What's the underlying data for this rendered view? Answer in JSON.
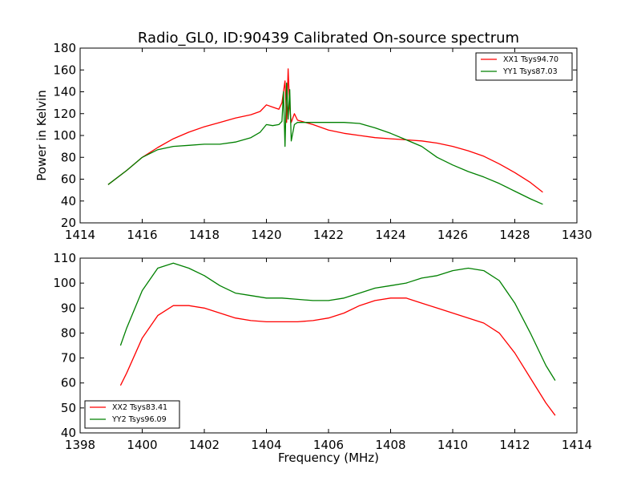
{
  "title": "Radio_GL0, ID:90439 Calibrated On-source spectrum",
  "chart_data": [
    {
      "type": "line",
      "title": "Radio_GL0, ID:90439 Calibrated On-source spectrum",
      "xlabel": "",
      "ylabel": "Power in Kelvin",
      "xlim": [
        1414,
        1430
      ],
      "ylim": [
        20,
        180
      ],
      "xticks": [
        "1414",
        "1416",
        "1418",
        "1420",
        "1422",
        "1424",
        "1426",
        "1428",
        "1430"
      ],
      "yticks": [
        "20",
        "40",
        "60",
        "80",
        "100",
        "120",
        "140",
        "160",
        "180"
      ],
      "legend": "top-right",
      "grid": false,
      "series": [
        {
          "name": "XX1 Tsys94.70",
          "color": "#ff0000",
          "x": [
            1414.9,
            1415.5,
            1416.0,
            1416.5,
            1417.0,
            1417.5,
            1418.0,
            1418.5,
            1419.0,
            1419.5,
            1419.8,
            1420.0,
            1420.2,
            1420.4,
            1420.5,
            1420.6,
            1420.65,
            1420.7,
            1420.75,
            1420.8,
            1420.9,
            1421.0,
            1421.5,
            1422.0,
            1422.5,
            1423.0,
            1423.5,
            1424.0,
            1424.5,
            1425.0,
            1425.5,
            1426.0,
            1426.5,
            1427.0,
            1427.5,
            1428.0,
            1428.5,
            1428.9
          ],
          "y": [
            55,
            68,
            80,
            89,
            97,
            103,
            108,
            112,
            116,
            119,
            122,
            128,
            126,
            124,
            130,
            150,
            112,
            161,
            125,
            112,
            120,
            114,
            110,
            105,
            102,
            100,
            98,
            97,
            96,
            95,
            93,
            90,
            86,
            81,
            74,
            66,
            57,
            48
          ]
        },
        {
          "name": "YY1 Tsys87.03",
          "color": "#008000",
          "x": [
            1414.9,
            1415.5,
            1416.0,
            1416.5,
            1417.0,
            1417.5,
            1418.0,
            1418.5,
            1419.0,
            1419.5,
            1419.8,
            1420.0,
            1420.2,
            1420.4,
            1420.5,
            1420.55,
            1420.6,
            1420.65,
            1420.7,
            1420.75,
            1420.8,
            1420.9,
            1421.0,
            1421.5,
            1422.0,
            1422.5,
            1423.0,
            1423.5,
            1424.0,
            1424.5,
            1425.0,
            1425.5,
            1426.0,
            1426.5,
            1427.0,
            1427.5,
            1428.0,
            1428.5,
            1428.9
          ],
          "y": [
            55,
            68,
            80,
            87,
            90,
            91,
            92,
            92,
            94,
            98,
            103,
            110,
            109,
            110,
            113,
            140,
            90,
            148,
            115,
            142,
            95,
            110,
            112,
            112,
            112,
            112,
            111,
            107,
            102,
            96,
            90,
            80,
            73,
            67,
            62,
            56,
            49,
            42,
            37
          ]
        }
      ]
    },
    {
      "type": "line",
      "title": "",
      "xlabel": "Frequency (MHz)",
      "ylabel": "",
      "xlim": [
        1398,
        1414
      ],
      "ylim": [
        40,
        110
      ],
      "xticks": [
        "1398",
        "1400",
        "1402",
        "1404",
        "1406",
        "1408",
        "1410",
        "1412",
        "1414"
      ],
      "yticks": [
        "40",
        "50",
        "60",
        "70",
        "80",
        "90",
        "100",
        "110"
      ],
      "legend": "bottom-left",
      "grid": false,
      "series": [
        {
          "name": "XX2 Tsys83.41",
          "color": "#ff0000",
          "x": [
            1399.3,
            1399.5,
            1400.0,
            1400.5,
            1401.0,
            1401.5,
            1402.0,
            1402.5,
            1403.0,
            1403.5,
            1404.0,
            1404.5,
            1405.0,
            1405.5,
            1406.0,
            1406.5,
            1407.0,
            1407.5,
            1408.0,
            1408.5,
            1409.0,
            1409.5,
            1410.0,
            1410.5,
            1411.0,
            1411.5,
            1412.0,
            1412.5,
            1413.0,
            1413.3
          ],
          "y": [
            59,
            64,
            78,
            87,
            91,
            91,
            90,
            88,
            86,
            85,
            84.5,
            84.5,
            84.5,
            85,
            86,
            88,
            91,
            93,
            94,
            94,
            92,
            90,
            88,
            86,
            84,
            80,
            72,
            62,
            52,
            47
          ]
        },
        {
          "name": "YY2 Tsys96.09",
          "color": "#008000",
          "x": [
            1399.3,
            1399.5,
            1400.0,
            1400.5,
            1401.0,
            1401.5,
            1402.0,
            1402.5,
            1403.0,
            1403.5,
            1404.0,
            1404.5,
            1405.0,
            1405.5,
            1406.0,
            1406.5,
            1407.0,
            1407.5,
            1408.0,
            1408.5,
            1409.0,
            1409.5,
            1410.0,
            1410.5,
            1411.0,
            1411.5,
            1412.0,
            1412.5,
            1413.0,
            1413.3
          ],
          "y": [
            75,
            82,
            97,
            106,
            108,
            106,
            103,
            99,
            96,
            95,
            94,
            94,
            93.5,
            93,
            93,
            94,
            96,
            98,
            99,
            100,
            102,
            103,
            105,
            106,
            105,
            101,
            92,
            80,
            67,
            61
          ]
        }
      ]
    }
  ]
}
